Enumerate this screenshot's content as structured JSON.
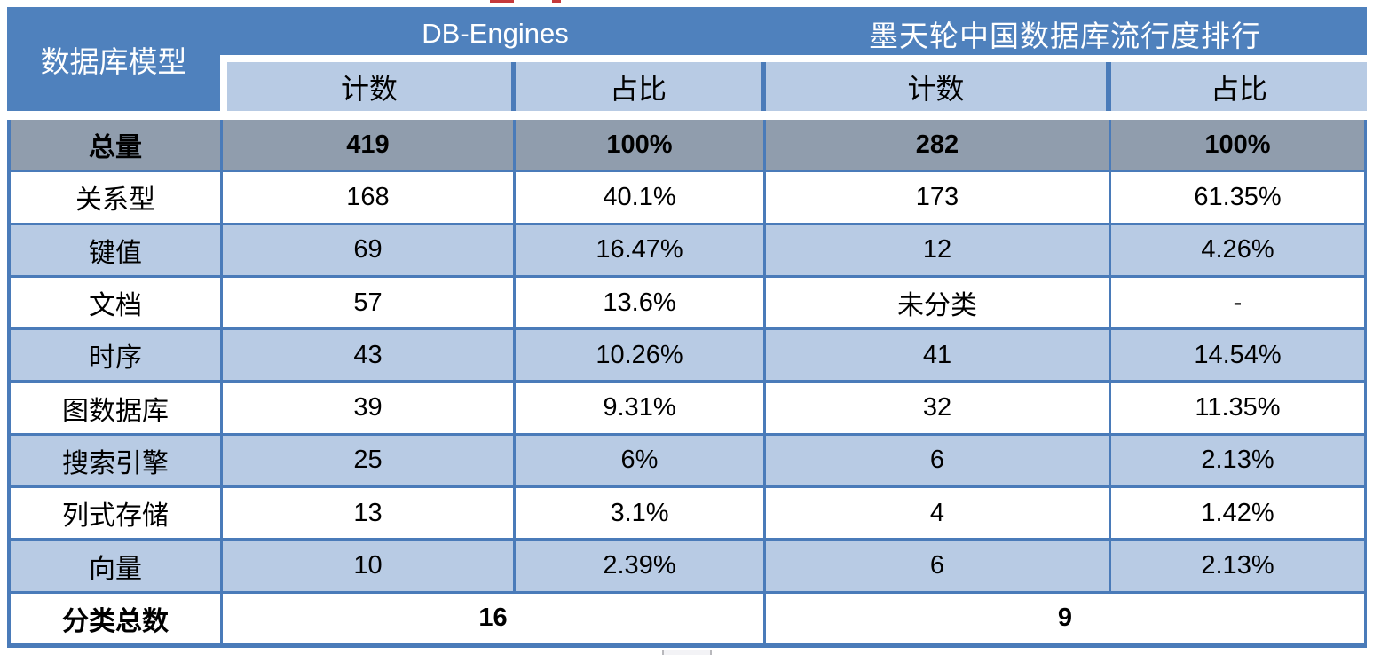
{
  "header": {
    "model_column_title": "数据库模型",
    "source_db_engines": "DB-Engines",
    "source_modb": "墨天轮中国数据库流行度排行",
    "count_label": "计数",
    "pct_label": "占比"
  },
  "table": {
    "rows": [
      {
        "label": "总量",
        "db_count": "419",
        "db_pct": "100%",
        "mo_count": "282",
        "mo_pct": "100%"
      },
      {
        "label": "关系型",
        "db_count": "168",
        "db_pct": "40.1%",
        "mo_count": "173",
        "mo_pct": "61.35%"
      },
      {
        "label": "键值",
        "db_count": "69",
        "db_pct": "16.47%",
        "mo_count": "12",
        "mo_pct": "4.26%"
      },
      {
        "label": "文档",
        "db_count": "57",
        "db_pct": "13.6%",
        "mo_count": "未分类",
        "mo_pct": "-"
      },
      {
        "label": "时序",
        "db_count": "43",
        "db_pct": "10.26%",
        "mo_count": "41",
        "mo_pct": "14.54%"
      },
      {
        "label": "图数据库",
        "db_count": "39",
        "db_pct": "9.31%",
        "mo_count": "32",
        "mo_pct": "11.35%"
      },
      {
        "label": "搜索引擎",
        "db_count": "25",
        "db_pct": "6%",
        "mo_count": "6",
        "mo_pct": "2.13%"
      },
      {
        "label": "列式存储",
        "db_count": "13",
        "db_pct": "3.1%",
        "mo_count": "4",
        "mo_pct": "1.42%"
      },
      {
        "label": "向量",
        "db_count": "10",
        "db_pct": "2.39%",
        "mo_count": "6",
        "mo_pct": "2.13%"
      }
    ],
    "footer": {
      "label": "分类总数",
      "db_total": "16",
      "mo_total": "9"
    }
  },
  "colors": {
    "header_blue": "#4f81bd",
    "light_blue_band": "#b8cbe4",
    "total_row_gray": "#909dad",
    "border_blue": "#4a7bb9",
    "red_fragment": "#c5393b"
  }
}
